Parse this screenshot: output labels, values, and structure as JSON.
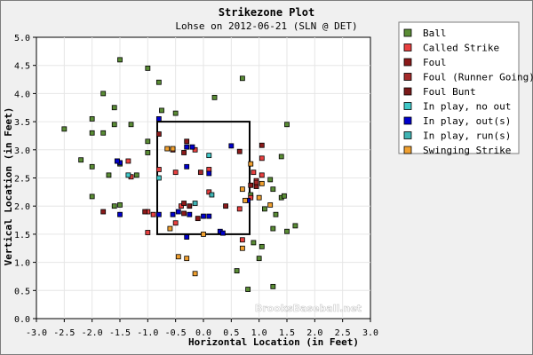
{
  "chart_data": {
    "type": "scatter",
    "title": "Strikezone Plot",
    "subtitle": "Lohse on 2012-06-21 (SLN @ DET)",
    "xlabel": "Horizontal Location (in Feet)",
    "ylabel": "Vertical Location (in Feet)",
    "xlim": [
      -3.0,
      3.0
    ],
    "ylim": [
      0.0,
      5.0
    ],
    "x_ticks": [
      "-3.0",
      "-2.5",
      "-2.0",
      "-1.5",
      "-1.0",
      "-0.5",
      "0.0",
      "0.5",
      "1.0",
      "1.5",
      "2.0",
      "2.5",
      "3.0"
    ],
    "y_ticks": [
      "0.0",
      "0.5",
      "1.0",
      "1.5",
      "2.0",
      "2.5",
      "3.0",
      "3.5",
      "4.0",
      "4.5",
      "5.0"
    ],
    "grid": true,
    "legend_position": "right",
    "strike_zone": {
      "x": [
        -0.83,
        0.83
      ],
      "y": [
        1.5,
        3.5
      ]
    },
    "watermark": "BrooksBaseball.net",
    "series": [
      {
        "name": "Ball",
        "color": "#5a8c35",
        "points": [
          [
            -1.5,
            4.6
          ],
          [
            -1.0,
            4.45
          ],
          [
            -0.8,
            4.2
          ],
          [
            0.2,
            3.93
          ],
          [
            0.7,
            4.27
          ],
          [
            -1.8,
            4.0
          ],
          [
            -1.6,
            3.75
          ],
          [
            -0.75,
            3.7
          ],
          [
            -0.5,
            3.65
          ],
          [
            -2.0,
            3.55
          ],
          [
            -1.6,
            3.45
          ],
          [
            -1.3,
            3.45
          ],
          [
            -2.5,
            3.37
          ],
          [
            -2.0,
            3.3
          ],
          [
            -1.8,
            3.3
          ],
          [
            -1.0,
            3.15
          ],
          [
            1.5,
            3.45
          ],
          [
            -1.0,
            2.95
          ],
          [
            -1.55,
            2.8
          ],
          [
            -2.2,
            2.82
          ],
          [
            -2.0,
            2.7
          ],
          [
            -1.5,
            2.75
          ],
          [
            1.4,
            2.88
          ],
          [
            -1.7,
            2.55
          ],
          [
            -1.2,
            2.55
          ],
          [
            1.2,
            2.47
          ],
          [
            1.25,
            2.3
          ],
          [
            0.85,
            2.2
          ],
          [
            1.4,
            2.15
          ],
          [
            1.45,
            2.18
          ],
          [
            -2.0,
            2.17
          ],
          [
            -1.6,
            2.0
          ],
          [
            -1.5,
            2.02
          ],
          [
            1.3,
            1.85
          ],
          [
            1.1,
            1.95
          ],
          [
            1.25,
            1.6
          ],
          [
            1.65,
            1.65
          ],
          [
            1.5,
            1.55
          ],
          [
            1.05,
            1.28
          ],
          [
            1.0,
            1.07
          ],
          [
            0.6,
            0.85
          ],
          [
            0.8,
            0.52
          ],
          [
            1.25,
            0.57
          ],
          [
            0.9,
            1.35
          ]
        ]
      },
      {
        "name": "Called Strike",
        "color": "#e84040",
        "points": [
          [
            -0.8,
            2.65
          ],
          [
            -0.15,
            3.0
          ],
          [
            -0.5,
            2.6
          ],
          [
            0.1,
            2.65
          ],
          [
            0.1,
            2.25
          ],
          [
            -0.4,
            2.0
          ],
          [
            -1.3,
            2.52
          ],
          [
            -1.35,
            2.8
          ],
          [
            -1.0,
            1.9
          ],
          [
            -0.9,
            1.85
          ],
          [
            -0.5,
            1.7
          ],
          [
            0.9,
            2.6
          ],
          [
            0.95,
            2.45
          ],
          [
            1.05,
            2.85
          ],
          [
            1.05,
            2.55
          ],
          [
            0.85,
            2.15
          ],
          [
            0.65,
            1.95
          ],
          [
            -1.0,
            1.53
          ],
          [
            0.7,
            1.4
          ]
        ]
      },
      {
        "name": "Foul",
        "color": "#8b1a1a",
        "points": [
          [
            -0.8,
            3.28
          ],
          [
            -0.3,
            3.15
          ],
          [
            -0.35,
            2.95
          ],
          [
            0.65,
            2.97
          ],
          [
            -0.35,
            1.87
          ],
          [
            0.95,
            2.35
          ],
          [
            1.05,
            3.08
          ],
          [
            -1.05,
            1.9
          ],
          [
            -0.1,
            1.78
          ],
          [
            0.4,
            2.0
          ],
          [
            0.85,
            2.37
          ],
          [
            -0.35,
            2.05
          ],
          [
            -1.8,
            1.9
          ]
        ]
      },
      {
        "name": "Foul (Runner Going)",
        "color": "#a52a2a",
        "points": [
          [
            -0.55,
            3.0
          ],
          [
            0.95,
            2.42
          ],
          [
            -0.05,
            2.6
          ]
        ]
      },
      {
        "name": "Foul Bunt",
        "color": "#7a1a1a",
        "points": [
          [
            -0.25,
            2.0
          ]
        ]
      },
      {
        "name": "In play, no out",
        "color": "#40c8c8",
        "points": [
          [
            0.1,
            2.9
          ],
          [
            -1.35,
            2.55
          ],
          [
            -0.8,
            2.5
          ]
        ]
      },
      {
        "name": "In play, out(s)",
        "color": "#0000cc",
        "points": [
          [
            -0.8,
            3.55
          ],
          [
            -0.2,
            3.05
          ],
          [
            -0.3,
            3.05
          ],
          [
            -0.3,
            2.7
          ],
          [
            0.1,
            2.58
          ],
          [
            0.5,
            3.07
          ],
          [
            -0.55,
            1.85
          ],
          [
            -0.25,
            1.85
          ],
          [
            0.0,
            1.82
          ],
          [
            0.1,
            1.82
          ],
          [
            -1.5,
            2.77
          ],
          [
            -1.5,
            1.85
          ],
          [
            -0.45,
            1.9
          ],
          [
            0.8,
            2.1
          ],
          [
            -0.3,
            1.45
          ],
          [
            0.3,
            1.55
          ],
          [
            0.35,
            1.52
          ],
          [
            -1.55,
            2.8
          ],
          [
            -0.8,
            1.85
          ]
        ]
      },
      {
        "name": "In play, run(s)",
        "color": "#40b4b4",
        "points": [
          [
            -0.15,
            2.05
          ],
          [
            0.15,
            2.2
          ]
        ]
      },
      {
        "name": "Swinging Strike",
        "color": "#f0a030",
        "points": [
          [
            -0.65,
            3.02
          ],
          [
            -0.55,
            3.02
          ],
          [
            0.85,
            2.75
          ],
          [
            1.05,
            2.4
          ],
          [
            1.2,
            2.02
          ],
          [
            1.0,
            2.15
          ],
          [
            0.75,
            2.1
          ],
          [
            0.7,
            2.3
          ],
          [
            -0.6,
            1.6
          ],
          [
            -0.45,
            1.1
          ],
          [
            -0.3,
            1.07
          ],
          [
            0.0,
            1.5
          ],
          [
            0.7,
            1.25
          ],
          [
            -0.15,
            0.8
          ]
        ]
      }
    ]
  }
}
